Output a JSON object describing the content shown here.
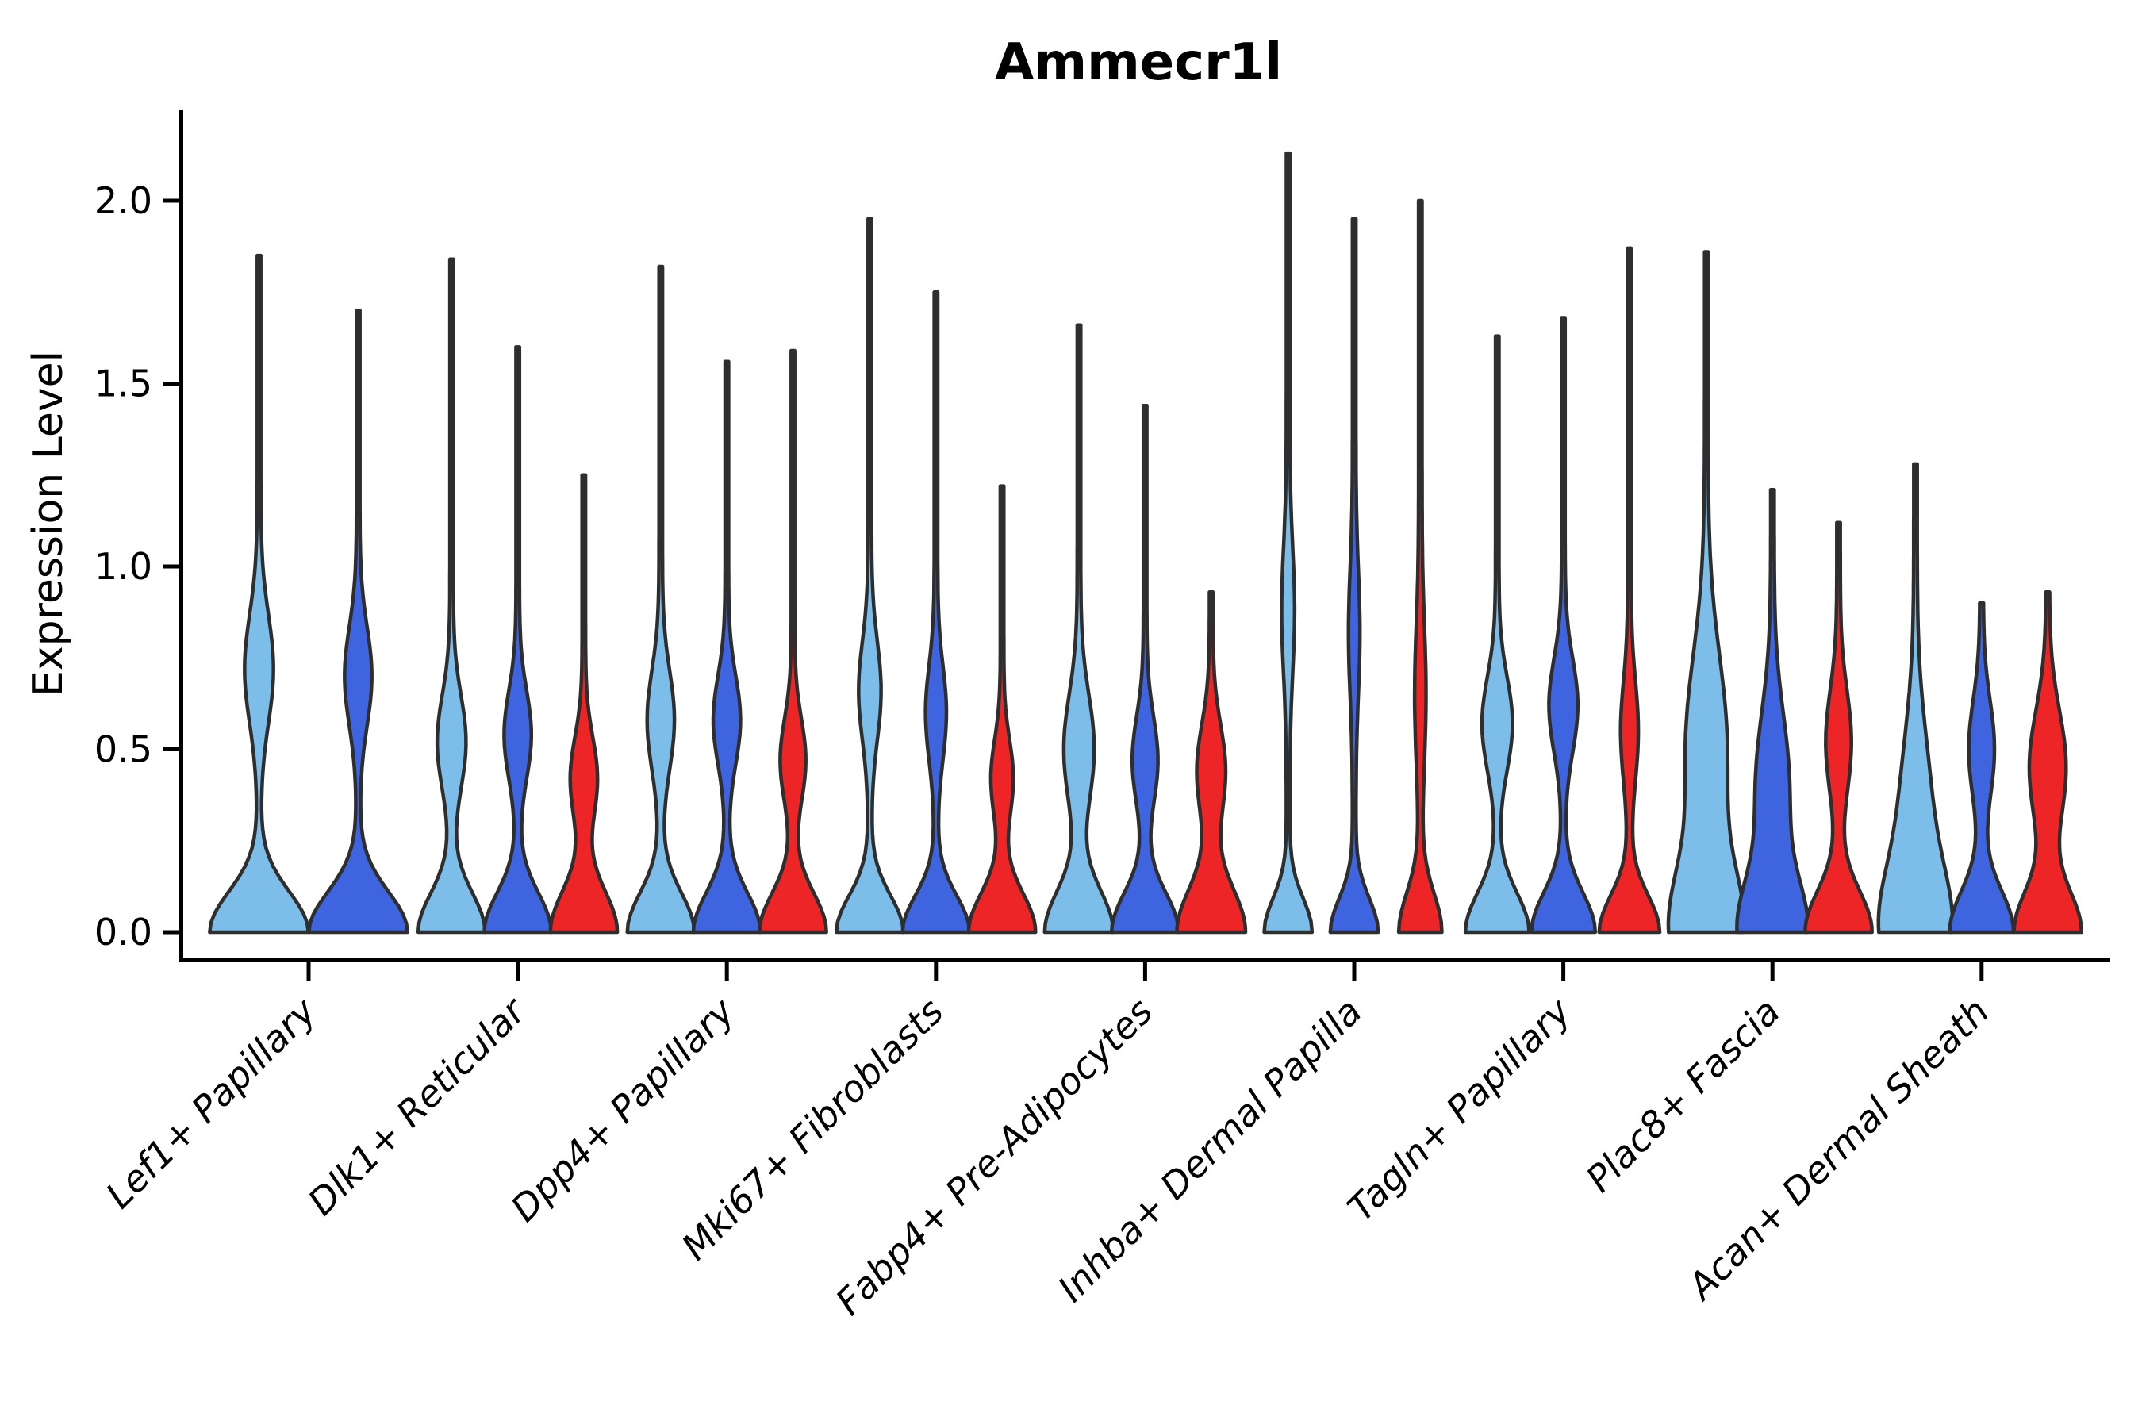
{
  "chart_data": {
    "type": "violin",
    "title": "Ammecr1l",
    "ylabel": "Expression Level",
    "xlabel": "",
    "ylim": [
      0,
      2.25
    ],
    "yticks": [
      0,
      0.5,
      1,
      1.5,
      2
    ],
    "ytick_labels": [
      "0.0",
      "0.5",
      "1.0",
      "1.5",
      "2.0"
    ],
    "grid": false,
    "legend_position": "none",
    "palette": {
      "light_blue": "#7CBEE9",
      "dark_blue": "#3E64DF",
      "red": "#EE2526",
      "outline": "#2E2E2E"
    },
    "categories": [
      "Lef1+ Papillary",
      "Dlk1+ Reticular",
      "Dpp4+ Papillary",
      "Mki67+ Fibroblasts",
      "Fabp4+ Pre-Adipocytes",
      "Inhba+ Dermal Papilla",
      "Tagln+ Papillary",
      "Plac8+ Fascia",
      "Acan+ Dermal Sheath"
    ],
    "groups": [
      {
        "category": "Lef1+ Papillary",
        "violins": [
          {
            "color": "light_blue",
            "max_expression": 1.85,
            "zero_peak_halfwidth": 60,
            "zero_peak_spread": 0.155,
            "bulge_level": 0.72,
            "bulge_halfwidth": 16,
            "bulge_spread": 0.21
          },
          {
            "color": "dark_blue",
            "max_expression": 1.7,
            "zero_peak_halfwidth": 60,
            "zero_peak_spread": 0.155,
            "bulge_level": 0.7,
            "bulge_halfwidth": 15,
            "bulge_spread": 0.19
          }
        ]
      },
      {
        "category": "Dlk1+ Reticular",
        "violins": [
          {
            "color": "light_blue",
            "max_expression": 1.84,
            "zero_peak_halfwidth": 40,
            "zero_peak_spread": 0.15,
            "bulge_level": 0.52,
            "bulge_halfwidth": 16,
            "bulge_spread": 0.18
          },
          {
            "color": "dark_blue",
            "max_expression": 1.6,
            "zero_peak_halfwidth": 40,
            "zero_peak_spread": 0.15,
            "bulge_level": 0.54,
            "bulge_halfwidth": 15,
            "bulge_spread": 0.17
          },
          {
            "color": "red",
            "max_expression": 1.25,
            "zero_peak_halfwidth": 40,
            "zero_peak_spread": 0.16,
            "bulge_level": 0.42,
            "bulge_halfwidth": 15,
            "bulge_spread": 0.16
          }
        ]
      },
      {
        "category": "Dpp4+ Papillary",
        "violins": [
          {
            "color": "light_blue",
            "max_expression": 1.82,
            "zero_peak_halfwidth": 40,
            "zero_peak_spread": 0.15,
            "bulge_level": 0.58,
            "bulge_halfwidth": 15,
            "bulge_spread": 0.19
          },
          {
            "color": "dark_blue",
            "max_expression": 1.56,
            "zero_peak_halfwidth": 40,
            "zero_peak_spread": 0.15,
            "bulge_level": 0.58,
            "bulge_halfwidth": 15,
            "bulge_spread": 0.17
          },
          {
            "color": "red",
            "max_expression": 1.59,
            "zero_peak_halfwidth": 40,
            "zero_peak_spread": 0.15,
            "bulge_level": 0.47,
            "bulge_halfwidth": 14,
            "bulge_spread": 0.16
          }
        ]
      },
      {
        "category": "Mki67+ Fibroblasts",
        "violins": [
          {
            "color": "light_blue",
            "max_expression": 1.95,
            "zero_peak_halfwidth": 40,
            "zero_peak_spread": 0.14,
            "bulge_level": 0.66,
            "bulge_halfwidth": 12,
            "bulge_spread": 0.19
          },
          {
            "color": "dark_blue",
            "max_expression": 1.75,
            "zero_peak_halfwidth": 40,
            "zero_peak_spread": 0.14,
            "bulge_level": 0.6,
            "bulge_halfwidth": 11,
            "bulge_spread": 0.18
          },
          {
            "color": "red",
            "max_expression": 1.22,
            "zero_peak_halfwidth": 40,
            "zero_peak_spread": 0.15,
            "bulge_level": 0.42,
            "bulge_halfwidth": 12,
            "bulge_spread": 0.15
          }
        ]
      },
      {
        "category": "Fabp4+ Pre-Adipocytes",
        "violins": [
          {
            "color": "light_blue",
            "max_expression": 1.66,
            "zero_peak_halfwidth": 41,
            "zero_peak_spread": 0.16,
            "bulge_level": 0.5,
            "bulge_halfwidth": 17,
            "bulge_spread": 0.21
          },
          {
            "color": "dark_blue",
            "max_expression": 1.44,
            "zero_peak_halfwidth": 40,
            "zero_peak_spread": 0.15,
            "bulge_level": 0.47,
            "bulge_halfwidth": 14,
            "bulge_spread": 0.17
          },
          {
            "color": "red",
            "max_expression": 0.93,
            "zero_peak_halfwidth": 41,
            "zero_peak_spread": 0.17,
            "bulge_level": 0.44,
            "bulge_halfwidth": 16,
            "bulge_spread": 0.18
          }
        ]
      },
      {
        "category": "Inhba+ Dermal Papilla",
        "violins": [
          {
            "color": "light_blue",
            "max_expression": 2.13,
            "zero_peak_halfwidth": 28,
            "zero_peak_spread": 0.13,
            "bulge_level": 0.88,
            "bulge_halfwidth": 6,
            "bulge_spread": 0.24
          },
          {
            "color": "dark_blue",
            "max_expression": 1.95,
            "zero_peak_halfwidth": 28,
            "zero_peak_spread": 0.13,
            "bulge_level": 0.82,
            "bulge_halfwidth": 5,
            "bulge_spread": 0.24
          },
          {
            "color": "red",
            "max_expression": 2.0,
            "zero_peak_halfwidth": 25,
            "zero_peak_spread": 0.15,
            "bulge_level": 0.65,
            "bulge_halfwidth": 5,
            "bulge_spread": 0.26
          }
        ]
      },
      {
        "category": "Tagln+ Papillary",
        "violins": [
          {
            "color": "light_blue",
            "max_expression": 1.63,
            "zero_peak_halfwidth": 38,
            "zero_peak_spread": 0.15,
            "bulge_level": 0.57,
            "bulge_halfwidth": 17,
            "bulge_spread": 0.18
          },
          {
            "color": "dark_blue",
            "max_expression": 1.68,
            "zero_peak_halfwidth": 38,
            "zero_peak_spread": 0.15,
            "bulge_level": 0.62,
            "bulge_halfwidth": 16,
            "bulge_spread": 0.18
          },
          {
            "color": "red",
            "max_expression": 1.87,
            "zero_peak_halfwidth": 36,
            "zero_peak_spread": 0.14,
            "bulge_level": 0.55,
            "bulge_halfwidth": 9,
            "bulge_spread": 0.19
          }
        ]
      },
      {
        "category": "Plac8+ Fascia",
        "violins": [
          {
            "color": "light_blue",
            "max_expression": 1.86,
            "zero_peak_halfwidth": 42,
            "zero_peak_spread": 0.24,
            "bulge_level": 0.5,
            "bulge_halfwidth": 24,
            "bulge_spread": 0.36
          },
          {
            "color": "dark_blue",
            "max_expression": 1.21,
            "zero_peak_halfwidth": 40,
            "zero_peak_spread": 0.2,
            "bulge_level": 0.4,
            "bulge_halfwidth": 19,
            "bulge_spread": 0.28
          },
          {
            "color": "red",
            "max_expression": 1.12,
            "zero_peak_halfwidth": 40,
            "zero_peak_spread": 0.16,
            "bulge_level": 0.52,
            "bulge_halfwidth": 14,
            "bulge_spread": 0.2
          }
        ]
      },
      {
        "category": "Acan+ Dermal Sheath",
        "violins": [
          {
            "color": "light_blue",
            "max_expression": 1.28,
            "zero_peak_halfwidth": 40,
            "zero_peak_spread": 0.24,
            "bulge_level": 0.35,
            "bulge_halfwidth": 16,
            "bulge_spread": 0.3
          },
          {
            "color": "dark_blue",
            "max_expression": 0.9,
            "zero_peak_halfwidth": 38,
            "zero_peak_spread": 0.16,
            "bulge_level": 0.5,
            "bulge_halfwidth": 14,
            "bulge_spread": 0.19
          },
          {
            "color": "red",
            "max_expression": 0.93,
            "zero_peak_halfwidth": 40,
            "zero_peak_spread": 0.16,
            "bulge_level": 0.45,
            "bulge_halfwidth": 21,
            "bulge_spread": 0.22
          }
        ]
      }
    ]
  }
}
